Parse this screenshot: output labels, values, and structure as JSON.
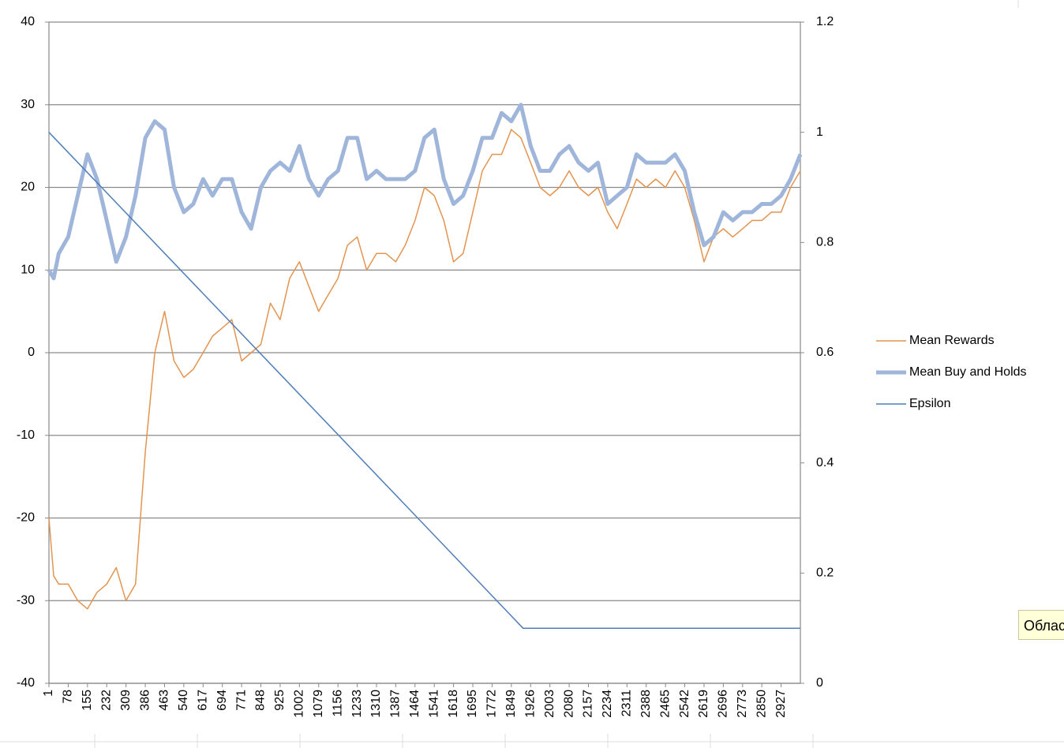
{
  "chart_data": {
    "type": "line",
    "x": [
      1,
      20,
      40,
      78,
      116,
      155,
      193,
      232,
      270,
      309,
      347,
      386,
      424,
      463,
      501,
      540,
      578,
      617,
      655,
      694,
      732,
      771,
      809,
      848,
      886,
      925,
      963,
      1002,
      1040,
      1079,
      1117,
      1156,
      1194,
      1233,
      1271,
      1310,
      1348,
      1387,
      1425,
      1464,
      1502,
      1541,
      1579,
      1618,
      1656,
      1695,
      1733,
      1772,
      1810,
      1849,
      1887,
      1926,
      1964,
      2003,
      2041,
      2080,
      2118,
      2157,
      2195,
      2234,
      2272,
      2311,
      2349,
      2388,
      2426,
      2465,
      2503,
      2542,
      2580,
      2619,
      2657,
      2696,
      2734,
      2773,
      2811,
      2850,
      2888,
      2927,
      2965,
      3004
    ],
    "xlim": [
      1,
      3004
    ],
    "xticks": [
      1,
      78,
      155,
      232,
      309,
      386,
      463,
      540,
      617,
      694,
      771,
      848,
      925,
      1002,
      1079,
      1156,
      1233,
      1310,
      1387,
      1464,
      1541,
      1618,
      1695,
      1772,
      1849,
      1926,
      2003,
      2080,
      2157,
      2234,
      2311,
      2388,
      2465,
      2542,
      2619,
      2696,
      2773,
      2850,
      2927
    ],
    "ylim": [
      -40,
      40
    ],
    "yticks": [
      -40,
      -30,
      -20,
      -10,
      0,
      10,
      20,
      30,
      40
    ],
    "y2lim": [
      0,
      1.2
    ],
    "y2ticks": [
      0,
      0.2,
      0.4,
      0.6,
      0.8,
      1,
      1.2
    ],
    "grid": true,
    "legend": "right",
    "series": [
      {
        "name": "Mean Rewards",
        "color": "#e39450",
        "width": 1.5,
        "values": [
          -20,
          -27,
          -28,
          -28,
          -30,
          -31,
          -29,
          -28,
          -26,
          -30,
          -28,
          -12,
          0,
          5,
          -1,
          -3,
          -2,
          0,
          2,
          3,
          4,
          -1,
          0,
          1,
          6,
          4,
          9,
          11,
          8,
          5,
          7,
          9,
          13,
          14,
          10,
          12,
          12,
          11,
          13,
          16,
          20,
          19,
          16,
          11,
          12,
          17,
          22,
          24,
          24,
          27,
          26,
          23,
          20,
          19,
          20,
          22,
          20,
          19,
          20,
          17,
          15,
          18,
          21,
          20,
          21,
          20,
          22,
          20,
          16,
          11,
          14,
          15,
          14,
          15,
          16,
          16,
          17,
          17,
          20,
          22
        ]
      },
      {
        "name": "Mean Buy and Holds",
        "color": "#9fb5da",
        "width": 5,
        "values": [
          10,
          9,
          12,
          14,
          19,
          24,
          21,
          16,
          11,
          14,
          19,
          26,
          28,
          27,
          20,
          17,
          18,
          21,
          19,
          21,
          21,
          17,
          15,
          20,
          22,
          23,
          22,
          25,
          21,
          19,
          21,
          22,
          26,
          26,
          21,
          22,
          21,
          21,
          21,
          22,
          26,
          27,
          21,
          18,
          19,
          22,
          26,
          26,
          29,
          28,
          30,
          25,
          22,
          22,
          24,
          25,
          23,
          22,
          23,
          18,
          19,
          20,
          24,
          23,
          23,
          23,
          24,
          22,
          17,
          13,
          14,
          17,
          16,
          17,
          17,
          18,
          18,
          19,
          21,
          24
        ]
      },
      {
        "name": "Epsilon",
        "color": "#4f7fb8",
        "width": 1.5,
        "axis": "y2",
        "x": [
          1,
          1896,
          3004
        ],
        "values": [
          1,
          0.1,
          0.1
        ]
      }
    ],
    "tooltip": "Облас"
  }
}
